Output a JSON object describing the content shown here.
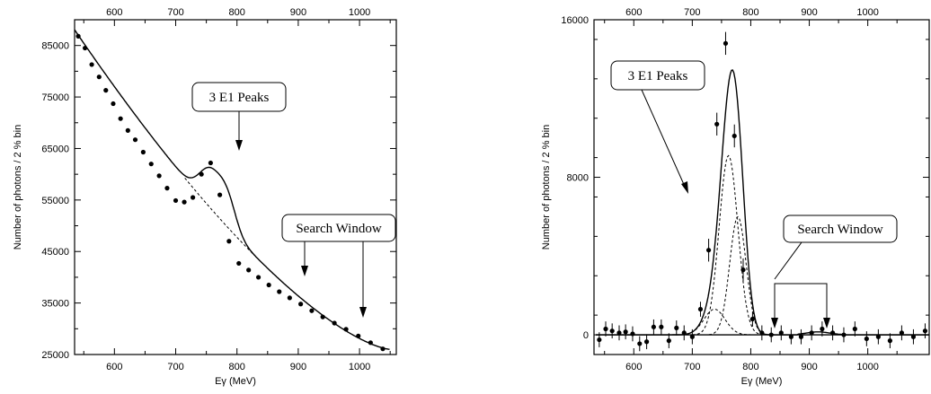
{
  "chart_data": [
    {
      "type": "scatter",
      "title": "",
      "xlabel": "Eγ (MeV)",
      "ylabel": "Number of photons / 2 % bin",
      "xlim": [
        535,
        1060
      ],
      "ylim": [
        25000,
        90000
      ],
      "xticks": [
        600,
        700,
        800,
        900,
        1000
      ],
      "yticks": [
        25000,
        35000,
        45000,
        55000,
        65000,
        75000,
        85000
      ],
      "top_xticks": [
        600,
        700,
        800,
        900,
        1000
      ],
      "x": [
        541,
        552,
        563,
        575,
        586,
        598,
        610,
        622,
        634,
        647,
        660,
        673,
        686,
        700,
        714,
        728,
        742,
        757,
        772,
        787,
        803,
        819,
        835,
        852,
        869,
        886,
        904,
        922,
        940,
        959,
        978,
        998,
        1018,
        1038
      ],
      "y": [
        86800,
        84500,
        81300,
        78900,
        76300,
        73700,
        70800,
        68500,
        66700,
        64300,
        62000,
        59700,
        57300,
        54900,
        54600,
        55500,
        60000,
        62200,
        56000,
        47000,
        42700,
        41400,
        40000,
        38500,
        37200,
        36000,
        34800,
        33500,
        32300,
        31100,
        29900,
        28600,
        27300,
        26100
      ],
      "series": [
        {
          "values": []
        },
        {
          "values": []
        }
      ],
      "annotations": [
        {
          "text": "3 E1 Peaks",
          "arrow_to_x": 772
        },
        {
          "text": "Search Window",
          "arrow_to_x": [
            880,
            1000
          ]
        }
      ],
      "grid": false
    },
    {
      "type": "scatter",
      "title": "",
      "xlabel": "Eγ (MeV)",
      "ylabel": "Number of photons / 2 % bin",
      "xlim": [
        532,
        1105
      ],
      "ylim": [
        -1000,
        16000
      ],
      "xticks": [
        600,
        700,
        800,
        900,
        1000
      ],
      "yticks": [
        0,
        8000,
        16000
      ],
      "top_xticks": [
        600,
        700,
        800,
        900,
        1000
      ],
      "x": [
        541,
        552,
        563,
        575,
        586,
        598,
        610,
        622,
        634,
        647,
        660,
        673,
        686,
        700,
        714,
        728,
        742,
        757,
        772,
        787,
        803,
        819,
        835,
        852,
        869,
        886,
        904,
        922,
        940,
        959,
        978,
        998,
        1018,
        1038,
        1058,
        1078,
        1098
      ],
      "y": [
        -250,
        300,
        200,
        100,
        150,
        50,
        -450,
        -350,
        400,
        400,
        -300,
        350,
        100,
        -100,
        1300,
        4300,
        10700,
        14800,
        10100,
        3300,
        800,
        100,
        0,
        100,
        -100,
        -100,
        100,
        300,
        100,
        0,
        300,
        -200,
        -100,
        -300,
        100,
        -100,
        200
      ],
      "series": [
        {
          "values": []
        },
        {
          "values": []
        }
      ],
      "annotations": [
        {
          "text": "3 E1 Peaks",
          "arrow_to_x": 742
        },
        {
          "text": "Search Window",
          "arrow_to_x": [
            870,
            990
          ]
        }
      ],
      "grid": false
    }
  ]
}
